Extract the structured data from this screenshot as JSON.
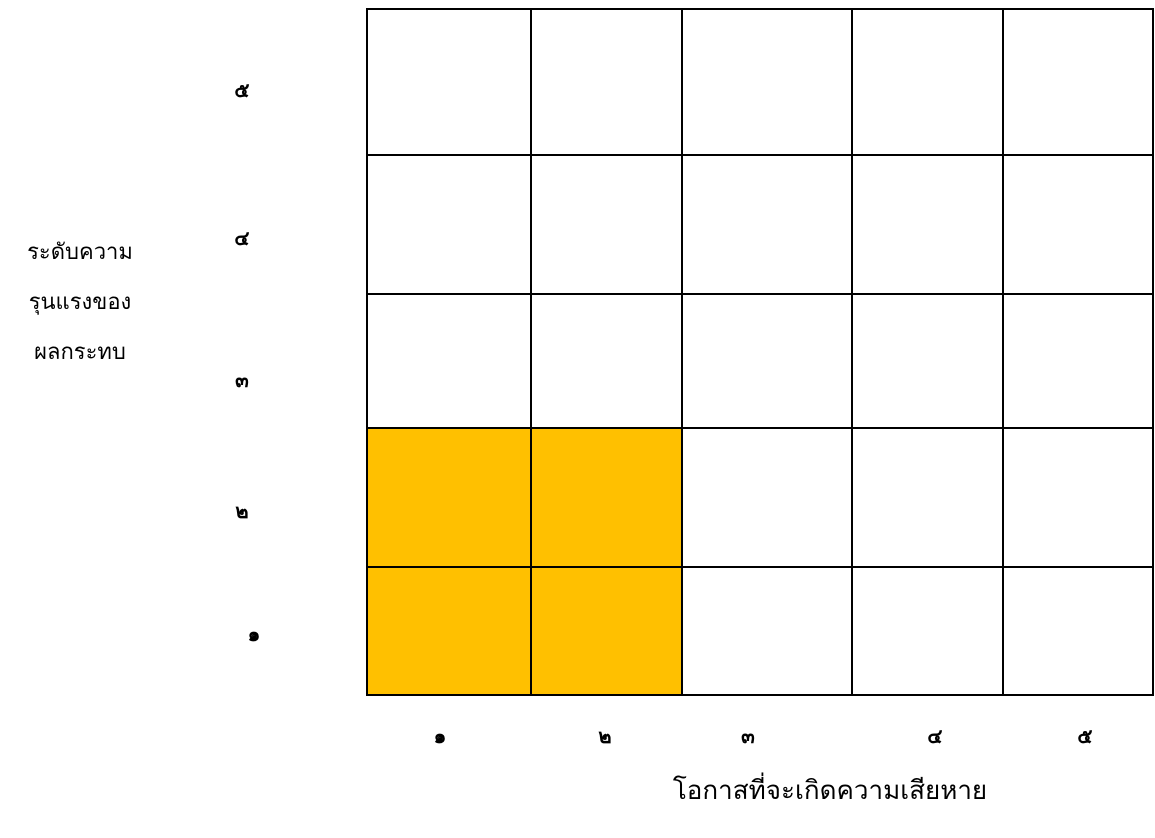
{
  "y_axis_label_lines": [
    "ระดับความ",
    "รุนแรงของ",
    "ผลกระทบ"
  ],
  "x_axis_label": "โอกาสที่จะเกิดความเสียหาย",
  "y_ticks": [
    "๕",
    "๔",
    "๓",
    "๒",
    "๑"
  ],
  "x_ticks": [
    "๑",
    "๒",
    "๓",
    "๔",
    "๕"
  ],
  "highlight_color": "#FFC000",
  "matrix": {
    "rows": 5,
    "cols": 5,
    "highlighted_cells": [
      {
        "likelihood": 1,
        "impact": 1
      },
      {
        "likelihood": 2,
        "impact": 1
      },
      {
        "likelihood": 1,
        "impact": 2
      },
      {
        "likelihood": 2,
        "impact": 2
      }
    ]
  }
}
